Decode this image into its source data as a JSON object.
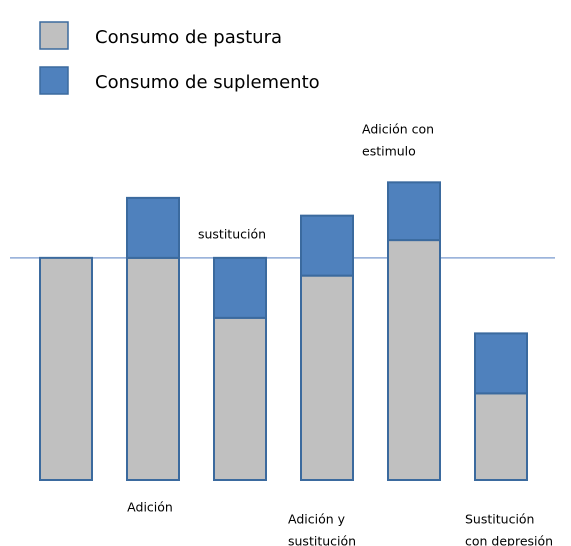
{
  "chart_data": {
    "type": "stacked_bar",
    "categories": [
      null,
      "Adición",
      "sustitución",
      [
        "Adición y",
        "sustitución"
      ],
      [
        "Adición con",
        "estimulo"
      ],
      [
        "Sustitución",
        "con depresión"
      ]
    ],
    "series": [
      {
        "name": "Consumo de pastura",
        "color": "#c0c0c0",
        "values": [
          100,
          100,
          73,
          92,
          108,
          39
        ]
      },
      {
        "name": "Consumo de suplemento",
        "color": "#4f81bd",
        "values": [
          0,
          27,
          27,
          27,
          26,
          27
        ]
      }
    ],
    "ylim": [
      0,
      140
    ],
    "reference_line": 100,
    "legend": "top-left"
  }
}
